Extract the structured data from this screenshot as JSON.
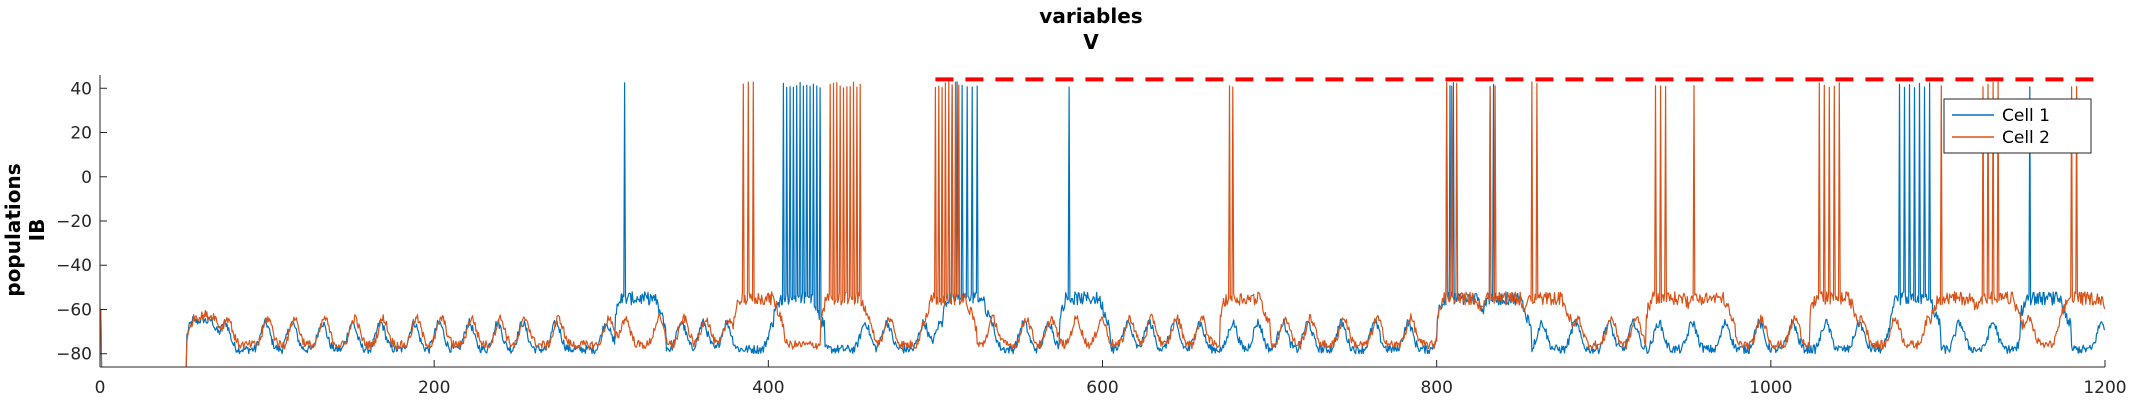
{
  "chart_data": {
    "type": "line",
    "title": [
      "variables",
      "V"
    ],
    "ylabel": [
      "populations",
      "IB"
    ],
    "xlabel": "",
    "xlim": [
      0,
      1200
    ],
    "ylim": [
      -86,
      46
    ],
    "xticks": [
      0,
      200,
      400,
      600,
      800,
      1000,
      1200
    ],
    "yticks": [
      -80,
      -60,
      -40,
      -20,
      0,
      20,
      40
    ],
    "grid": false,
    "legend_position": "top-right",
    "threshold_line": {
      "y": 44,
      "x_start": 500,
      "x_end": 1200,
      "color": "#ff0000",
      "style": "dashed"
    },
    "series": [
      {
        "name": "Cell 1",
        "color": "#0072bd",
        "baseline": -78,
        "spikes": [
          314,
          409,
          411,
          413,
          415,
          417,
          419,
          421,
          423,
          425,
          427,
          429,
          431,
          510,
          513,
          516,
          519,
          522,
          525,
          580,
          806,
          808,
          810,
          832,
          834,
          1077,
          1080,
          1083,
          1086,
          1089,
          1092,
          1095,
          1155
        ]
      },
      {
        "name": "Cell 2",
        "color": "#d95319",
        "baseline": -76,
        "spikes": [
          385,
          388,
          391,
          437,
          439,
          441,
          443,
          445,
          447,
          449,
          451,
          453,
          455,
          500,
          502,
          504,
          506,
          508,
          510,
          512,
          514,
          676,
          678,
          806,
          809,
          812,
          832,
          835,
          857,
          860,
          931,
          934,
          937,
          954,
          1029,
          1032,
          1035,
          1038,
          1041,
          1102,
          1127,
          1130,
          1133,
          1136,
          1180,
          1183
        ]
      }
    ],
    "bumps": [
      52,
      58,
      64,
      72,
      96,
      112,
      130,
      148,
      165,
      185,
      200,
      218,
      235,
      250,
      270,
      300,
      310,
      330,
      345,
      358,
      372,
      400,
      455,
      468,
      490,
      500,
      530,
      550,
      565,
      580,
      595,
      612,
      625,
      640,
      655,
      675,
      690,
      705,
      720,
      740,
      760,
      780,
      800,
      820,
      840,
      860,
      880,
      900,
      915,
      930,
      950,
      970,
      990,
      1010,
      1030,
      1050,
      1070,
      1090,
      1110,
      1130,
      1150,
      1170,
      1195
    ]
  }
}
